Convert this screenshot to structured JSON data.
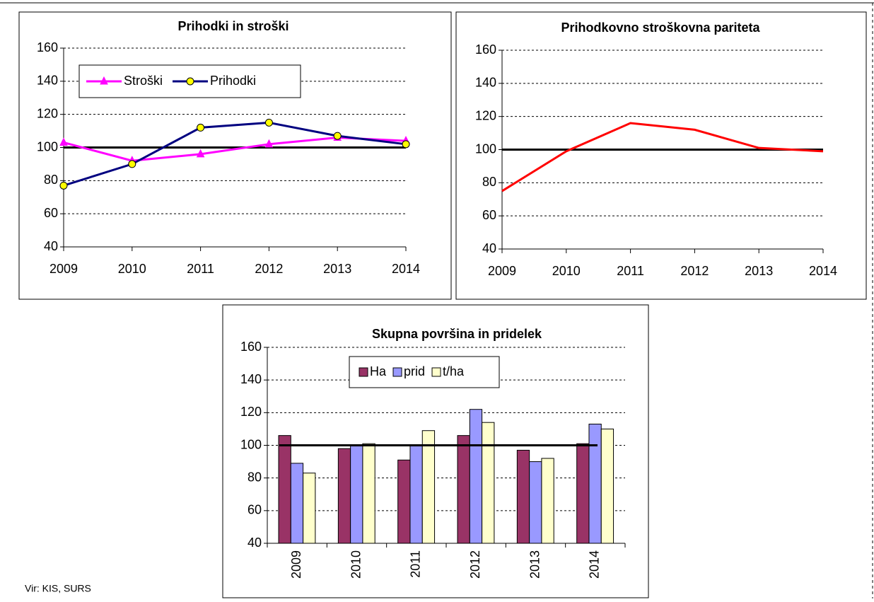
{
  "source": "Vir: KIS, SURS",
  "chart_data": [
    {
      "type": "line",
      "title": "Prihodki in stroški",
      "categories": [
        "2009",
        "2010",
        "2011",
        "2012",
        "2013",
        "2014"
      ],
      "series": [
        {
          "name": "Stroški",
          "color": "#ff00ff",
          "marker": "triangle",
          "values": [
            103,
            92,
            96,
            102,
            106,
            104
          ]
        },
        {
          "name": "Prihodki",
          "color": "#000080",
          "marker": "circle",
          "values": [
            77,
            90,
            112,
            115,
            107,
            102
          ]
        }
      ],
      "reference": 100,
      "ylim": [
        40,
        160
      ],
      "yticks": [
        40,
        60,
        80,
        100,
        120,
        140,
        160
      ],
      "grid": true
    },
    {
      "type": "line",
      "title": "Prihodkovno stroškovna pariteta",
      "categories": [
        "2009",
        "2010",
        "2011",
        "2012",
        "2013",
        "2014"
      ],
      "series": [
        {
          "color": "#ff0000",
          "values": [
            75,
            99,
            116,
            112,
            101,
            99
          ]
        }
      ],
      "reference": 100,
      "ylim": [
        40,
        160
      ],
      "yticks": [
        40,
        60,
        80,
        100,
        120,
        140,
        160
      ],
      "grid": true
    },
    {
      "type": "bar",
      "title": "Skupna površina in pridelek",
      "categories": [
        "2009",
        "2010",
        "2011",
        "2012",
        "2013",
        "2014"
      ],
      "series": [
        {
          "name": "Ha",
          "color": "#993366",
          "values": [
            106,
            98,
            91,
            106,
            97,
            101
          ]
        },
        {
          "name": "prid",
          "color": "#9999ff",
          "values": [
            89,
            100,
            100,
            122,
            90,
            113
          ]
        },
        {
          "name": "t/ha",
          "color": "#ffffcc",
          "values": [
            83,
            101,
            109,
            114,
            92,
            110
          ]
        }
      ],
      "reference": 100,
      "ylim": [
        40,
        160
      ],
      "yticks": [
        40,
        60,
        80,
        100,
        120,
        140,
        160
      ],
      "grid": true
    }
  ]
}
